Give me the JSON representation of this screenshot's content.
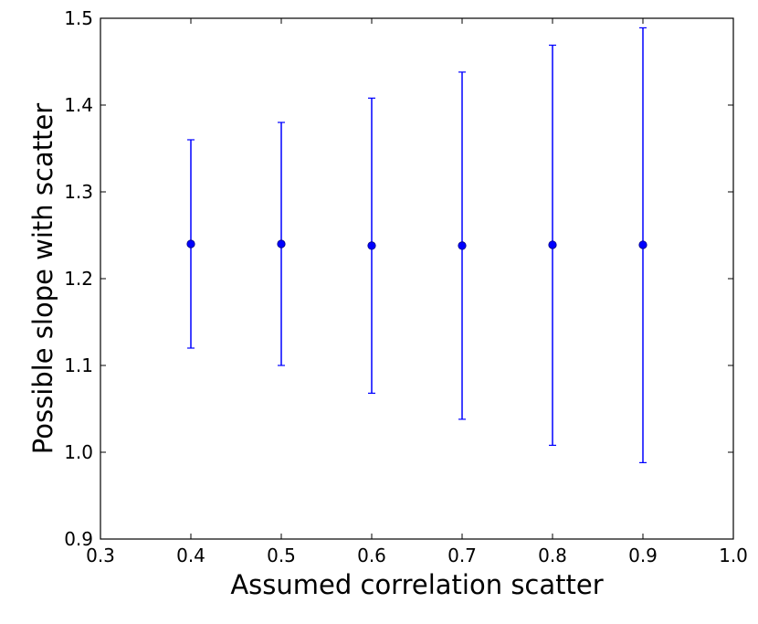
{
  "chart_data": {
    "type": "scatter",
    "xlabel": "Assumed correlation scatter",
    "ylabel": "Possible slope with scatter",
    "xlim": [
      0.3,
      1.0
    ],
    "ylim": [
      0.9,
      1.5
    ],
    "xticks": [
      "0.3",
      "0.4",
      "0.5",
      "0.6",
      "0.7",
      "0.8",
      "0.9",
      "1.0"
    ],
    "yticks": [
      "0.9",
      "1.0",
      "1.1",
      "1.2",
      "1.3",
      "1.4",
      "1.5"
    ],
    "grid": false,
    "color": "#0000ff",
    "series": [
      {
        "x": [
          0.4,
          0.5,
          0.6,
          0.7,
          0.8,
          0.9
        ],
        "y": [
          1.24,
          1.24,
          1.238,
          1.238,
          1.239,
          1.239
        ],
        "y_lower": [
          1.12,
          1.1,
          1.068,
          1.038,
          1.008,
          0.988
        ],
        "y_upper": [
          1.36,
          1.38,
          1.408,
          1.438,
          1.469,
          1.489
        ]
      }
    ]
  }
}
